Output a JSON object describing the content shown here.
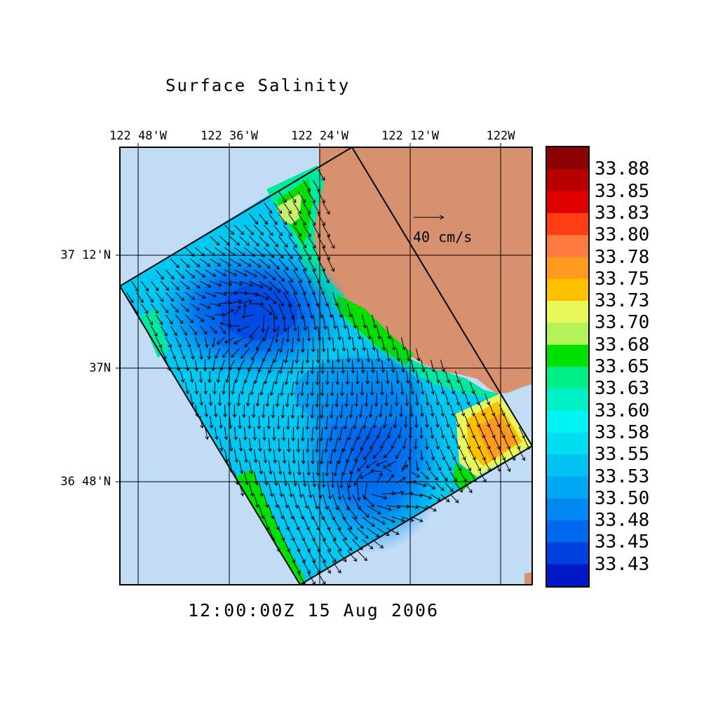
{
  "title": "Surface Salinity",
  "timestamp": "12:00:00Z  15 Aug 2006",
  "longitude_labels": [
    "122 48'W",
    "122 36'W",
    "122 24'W",
    "122 12'W",
    "122W"
  ],
  "latitude_labels": [
    "37 12'N",
    "37N",
    "36 48'N"
  ],
  "reference_vector": {
    "label": "40 cm/s"
  },
  "colorbar": {
    "labels": [
      "33.88",
      "33.85",
      "33.83",
      "33.80",
      "33.78",
      "33.75",
      "33.73",
      "33.70",
      "33.68",
      "33.65",
      "33.63",
      "33.60",
      "33.58",
      "33.55",
      "33.53",
      "33.50",
      "33.48",
      "33.45",
      "33.43"
    ],
    "colors": [
      "#8b0000",
      "#b90000",
      "#e00000",
      "#ff3c12",
      "#ff7a40",
      "#ff9a20",
      "#ffc000",
      "#e8f85c",
      "#b4f25a",
      "#00e000",
      "#00ee88",
      "#00f0c8",
      "#00f4f4",
      "#00def0",
      "#00c2f2",
      "#00a8f4",
      "#0088f0",
      "#0068ec",
      "#0040e0",
      "#0018c8"
    ]
  },
  "colors": {
    "ocean": "#c2dcf6",
    "land": "#d8916f"
  }
}
